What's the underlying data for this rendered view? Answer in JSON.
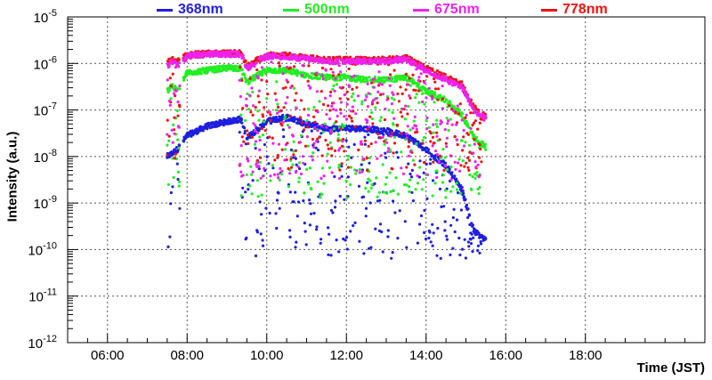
{
  "chart_data": {
    "type": "scatter",
    "title": "",
    "xlabel": "Time (JST)",
    "ylabel": "Intensity (a.u.)",
    "yscale": "log",
    "ylim_log10": [
      -12,
      -5
    ],
    "xlim_hours": [
      5,
      21
    ],
    "x_ticks": [
      "06:00",
      "08:00",
      "10:00",
      "12:00",
      "14:00",
      "16:00",
      "18:00"
    ],
    "x_tick_hours": [
      6,
      8,
      10,
      12,
      14,
      16,
      18
    ],
    "y_tick_exponents": [
      -12,
      -11,
      -10,
      -9,
      -8,
      -7,
      -6,
      -5
    ],
    "y_tick_base": "10",
    "grid": true,
    "series": [
      {
        "name": "368nm",
        "color": "#1f1fe0",
        "main_trend": [
          [
            7.5,
            -8.0
          ],
          [
            7.6,
            -7.95
          ],
          [
            7.75,
            -7.85
          ],
          [
            8.0,
            -7.55
          ],
          [
            8.5,
            -7.35
          ],
          [
            9.0,
            -7.25
          ],
          [
            9.35,
            -7.2
          ],
          [
            9.5,
            -7.6
          ],
          [
            10.0,
            -7.25
          ],
          [
            10.5,
            -7.15
          ],
          [
            11.0,
            -7.3
          ],
          [
            11.5,
            -7.4
          ],
          [
            12.0,
            -7.4
          ],
          [
            12.5,
            -7.4
          ],
          [
            13.0,
            -7.45
          ],
          [
            13.5,
            -7.55
          ],
          [
            14.0,
            -7.85
          ],
          [
            14.5,
            -8.2
          ],
          [
            14.9,
            -8.7
          ],
          [
            15.2,
            -9.6
          ],
          [
            15.5,
            -9.8
          ]
        ],
        "dip_min_log10": -10.2
      },
      {
        "name": "500nm",
        "color": "#22ee22",
        "main_trend": [
          [
            7.5,
            -6.6
          ],
          [
            7.6,
            -6.45
          ],
          [
            7.75,
            -6.6
          ],
          [
            8.0,
            -6.2
          ],
          [
            8.5,
            -6.15
          ],
          [
            9.0,
            -6.1
          ],
          [
            9.35,
            -6.1
          ],
          [
            9.5,
            -6.4
          ],
          [
            10.0,
            -6.15
          ],
          [
            10.5,
            -6.15
          ],
          [
            11.0,
            -6.25
          ],
          [
            11.5,
            -6.3
          ],
          [
            12.0,
            -6.3
          ],
          [
            12.5,
            -6.35
          ],
          [
            13.0,
            -6.35
          ],
          [
            13.5,
            -6.3
          ],
          [
            14.0,
            -6.6
          ],
          [
            14.5,
            -6.8
          ],
          [
            14.9,
            -7.1
          ],
          [
            15.2,
            -7.6
          ],
          [
            15.5,
            -7.8
          ]
        ],
        "dip_min_log10": -8.9
      },
      {
        "name": "675nm",
        "color": "#ee22ee",
        "main_trend": [
          [
            7.5,
            -6.1
          ],
          [
            7.6,
            -5.95
          ],
          [
            7.75,
            -6.05
          ],
          [
            8.0,
            -5.85
          ],
          [
            8.5,
            -5.8
          ],
          [
            9.0,
            -5.8
          ],
          [
            9.35,
            -5.8
          ],
          [
            9.5,
            -6.1
          ],
          [
            10.0,
            -5.85
          ],
          [
            10.5,
            -5.85
          ],
          [
            11.0,
            -5.9
          ],
          [
            11.5,
            -5.95
          ],
          [
            12.0,
            -5.95
          ],
          [
            12.5,
            -5.95
          ],
          [
            13.0,
            -5.95
          ],
          [
            13.5,
            -5.9
          ],
          [
            14.0,
            -6.15
          ],
          [
            14.5,
            -6.35
          ],
          [
            14.9,
            -6.5
          ],
          [
            15.2,
            -7.0
          ],
          [
            15.5,
            -7.2
          ]
        ],
        "dip_min_log10": -8.5
      },
      {
        "name": "778nm",
        "color": "#ee1111",
        "main_trend": [
          [
            7.5,
            -6.0
          ],
          [
            7.6,
            -5.9
          ],
          [
            7.75,
            -5.95
          ],
          [
            8.0,
            -5.82
          ],
          [
            8.5,
            -5.78
          ],
          [
            9.0,
            -5.78
          ],
          [
            9.35,
            -5.78
          ],
          [
            9.5,
            -6.05
          ],
          [
            10.0,
            -5.82
          ],
          [
            10.5,
            -5.82
          ],
          [
            11.0,
            -5.88
          ],
          [
            11.5,
            -5.92
          ],
          [
            12.0,
            -5.92
          ],
          [
            12.5,
            -5.92
          ],
          [
            13.0,
            -5.92
          ],
          [
            13.5,
            -5.88
          ],
          [
            14.0,
            -6.1
          ],
          [
            14.5,
            -6.3
          ],
          [
            14.9,
            -6.45
          ],
          [
            15.2,
            -6.95
          ],
          [
            15.5,
            -7.15
          ]
        ],
        "dip_min_log10": -8.3
      }
    ]
  }
}
